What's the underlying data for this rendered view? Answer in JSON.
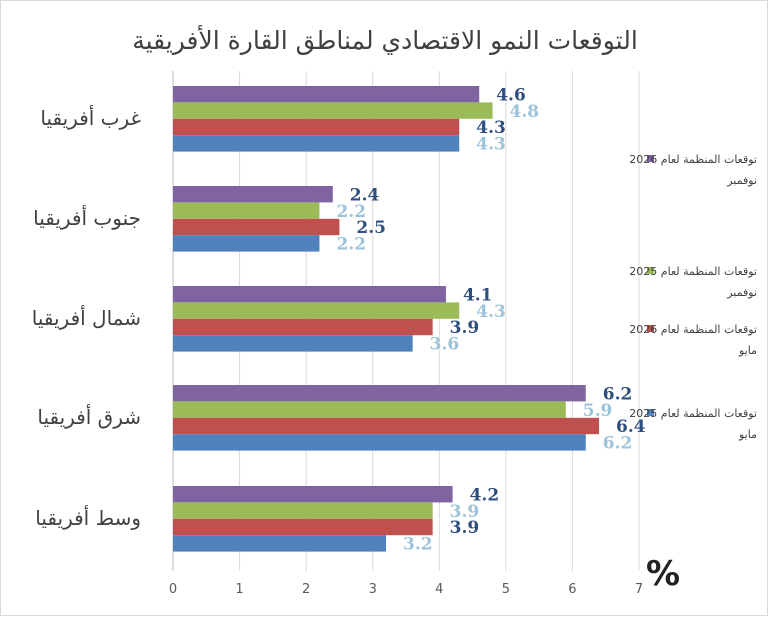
{
  "chart_data": {
    "type": "bar",
    "orientation": "horizontal",
    "title": "التوقعات النمو الاقتصادي لمناطق القارة الأفريقية",
    "unit_label": "%",
    "categories": [
      "غرب أفريقيا",
      "جنوب أفريقيا",
      "شمال أفريقيا",
      "شرق أفريقيا",
      "وسط أفريقيا"
    ],
    "series": [
      {
        "name": "توقعات المنظمة لعام 2026 - نوفمبر",
        "color": "#8064A2",
        "label_color": "#2F4F7F",
        "values": [
          4.6,
          2.4,
          4.1,
          6.2,
          4.2
        ]
      },
      {
        "name": "توقعات المنظمة لعام 2025 - نوفمبر",
        "color": "#9BBB59",
        "label_color": "#9CC3DA",
        "values": [
          4.8,
          2.2,
          4.3,
          5.9,
          3.9
        ]
      },
      {
        "name": "توقعات المنظمة لعام 2026 - مايو",
        "color": "#C0504D",
        "label_color": "#2F4F7F",
        "values": [
          4.3,
          2.5,
          3.9,
          6.4,
          3.9
        ]
      },
      {
        "name": "توقعات المنظمة لعام 2025 - مايو",
        "color": "#4F81BD",
        "label_color": "#9CC3DA",
        "values": [
          4.3,
          2.2,
          3.6,
          6.2,
          3.2
        ]
      }
    ],
    "xlim": [
      0,
      7
    ],
    "xticks": [
      "0",
      "1",
      "2",
      "3",
      "4",
      "5",
      "6",
      "7"
    ],
    "grid": true,
    "legend_position": "right"
  }
}
